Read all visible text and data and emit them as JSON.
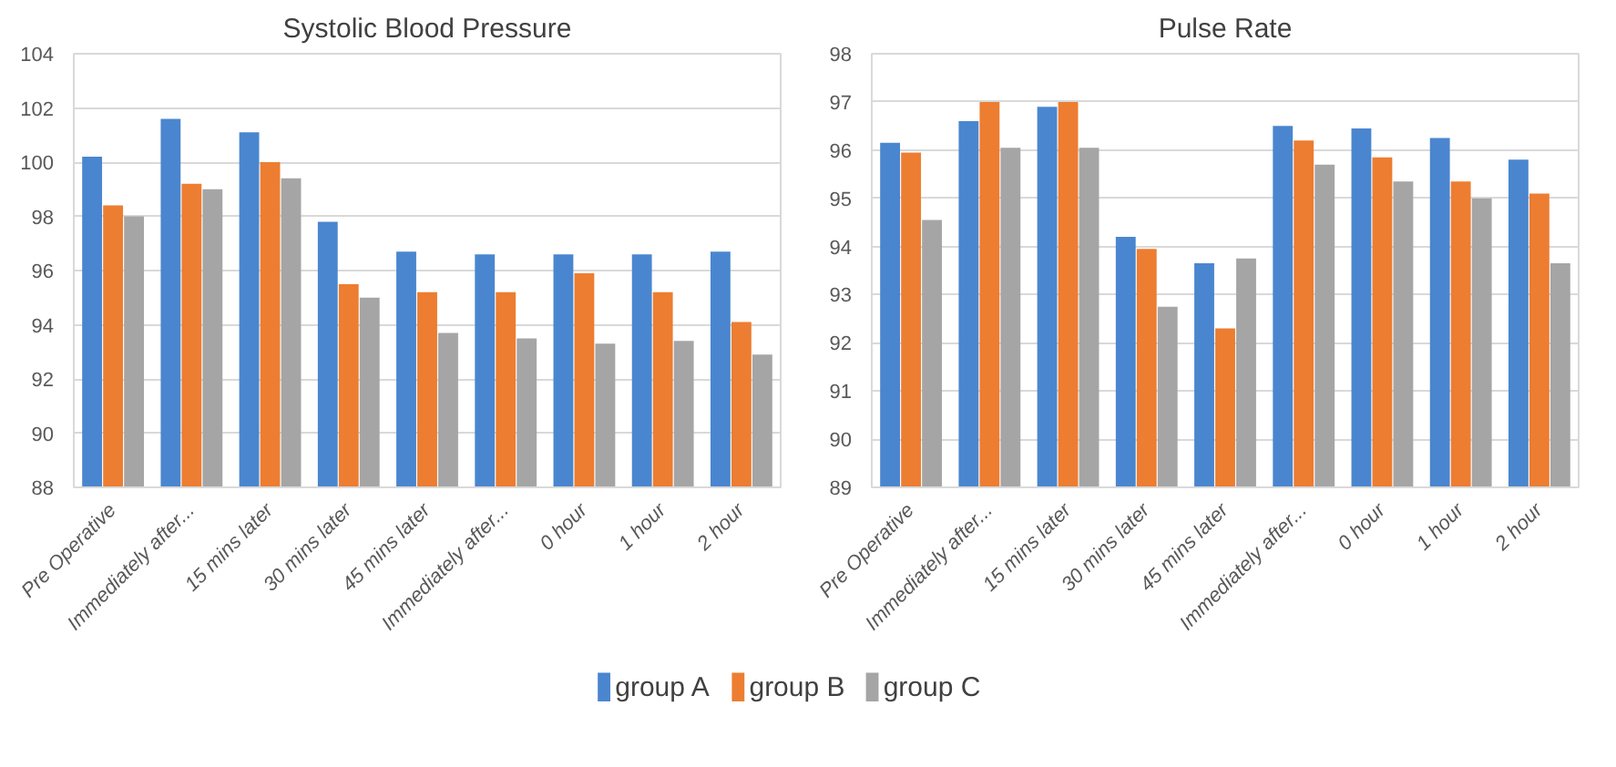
{
  "chart_data": [
    {
      "type": "bar",
      "title": "Systolic Blood Pressure",
      "categories": [
        "Pre Operative",
        "Immediately after...",
        "15 mins later",
        "30 mins later",
        "45 mins later",
        "Immediately after...",
        "0 hour",
        "1 hour",
        "2 hour"
      ],
      "series": [
        {
          "name": "group A",
          "color": "#4a86cf",
          "values": [
            100.2,
            101.6,
            101.1,
            97.8,
            96.7,
            96.6,
            96.6,
            96.6,
            96.7
          ]
        },
        {
          "name": "group B",
          "color": "#ed7d31",
          "values": [
            98.4,
            99.2,
            100.0,
            95.5,
            95.2,
            95.2,
            95.9,
            95.2,
            94.1
          ]
        },
        {
          "name": "group C",
          "color": "#a5a5a5",
          "values": [
            98.0,
            99.0,
            99.4,
            95.0,
            93.7,
            93.5,
            93.3,
            93.4,
            92.9
          ]
        }
      ],
      "ylim": [
        88,
        104
      ],
      "yticks": [
        88,
        90,
        92,
        94,
        96,
        98,
        100,
        102,
        104
      ],
      "grid": "y",
      "legend": "bottom"
    },
    {
      "type": "bar",
      "title": "Pulse Rate",
      "categories": [
        "Pre Operative",
        "Immediately after...",
        "15 mins later",
        "30 mins later",
        "45 mins later",
        "Immediately after...",
        "0 hour",
        "1 hour",
        "2 hour"
      ],
      "series": [
        {
          "color": "#4a86cf",
          "values": [
            96.15,
            96.6,
            96.9,
            94.2,
            93.65,
            96.5,
            96.45,
            96.25,
            95.8
          ]
        },
        {
          "color": "#ed7d31",
          "values": [
            95.95,
            97.0,
            97.0,
            93.95,
            92.3,
            96.2,
            95.85,
            95.35,
            95.1
          ]
        },
        {
          "color": "#a5a5a5",
          "values": [
            94.55,
            96.05,
            96.05,
            92.75,
            93.75,
            95.7,
            95.35,
            95.0,
            93.65
          ]
        }
      ],
      "ylim": [
        89,
        98
      ],
      "yticks": [
        89,
        90,
        91,
        92,
        93,
        94,
        95,
        96,
        97,
        98
      ],
      "grid": "y"
    }
  ]
}
